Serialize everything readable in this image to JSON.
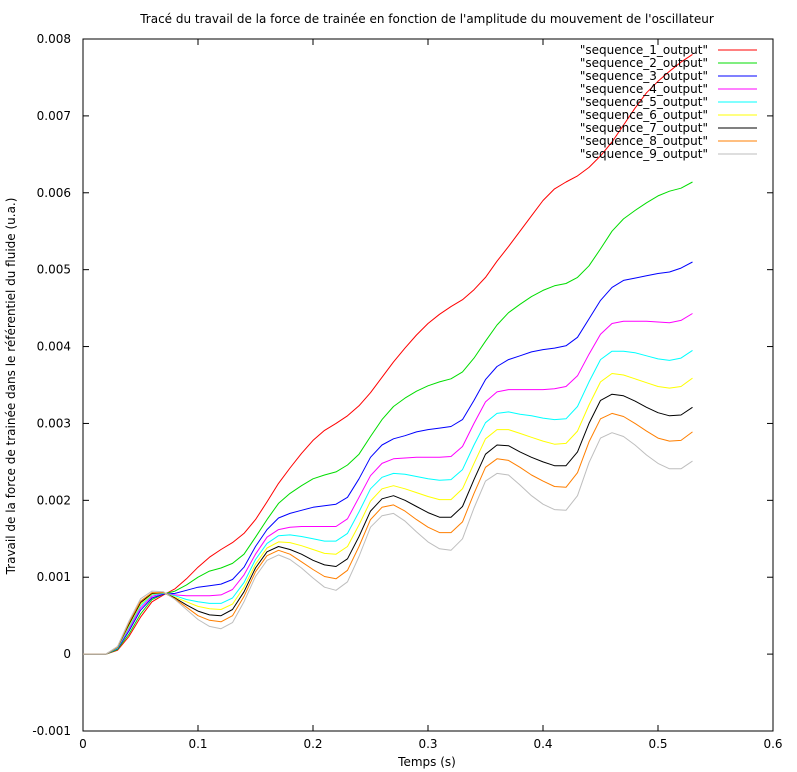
{
  "chart_data": {
    "type": "line",
    "title": "Tracé du travail de la force de trainée en fonction de l'amplitude du mouvement de l'oscillateur",
    "xlabel": "Temps (s)",
    "ylabel": "Travail de la force de trainée dans le référentiel du fluide (u.a.)",
    "xlim": [
      0,
      0.6
    ],
    "ylim": [
      -0.001,
      0.008
    ],
    "xticks": [
      0,
      0.1,
      0.2,
      0.3,
      0.4,
      0.5,
      0.6
    ],
    "xtick_labels": [
      "0",
      "0.1",
      "0.2",
      "0.3",
      "0.4",
      "0.5",
      "0.6"
    ],
    "yticks": [
      -0.001,
      0,
      0.001,
      0.002,
      0.003,
      0.004,
      0.005,
      0.006,
      0.007,
      0.008
    ],
    "ytick_labels": [
      "-0.001",
      "0",
      "0.001",
      "0.002",
      "0.003",
      "0.004",
      "0.005",
      "0.006",
      "0.007",
      "0.008"
    ],
    "legend_position": "top-right",
    "x": [
      0,
      0.01,
      0.02,
      0.03,
      0.04,
      0.05,
      0.06,
      0.07,
      0.08,
      0.09,
      0.1,
      0.11,
      0.12,
      0.13,
      0.14,
      0.15,
      0.16,
      0.17,
      0.18,
      0.19,
      0.2,
      0.21,
      0.22,
      0.23,
      0.24,
      0.25,
      0.26,
      0.27,
      0.28,
      0.29,
      0.3,
      0.31,
      0.32,
      0.33,
      0.34,
      0.35,
      0.36,
      0.37,
      0.38,
      0.39,
      0.4,
      0.41,
      0.42,
      0.43,
      0.44,
      0.45,
      0.46,
      0.47,
      0.48,
      0.49,
      0.5,
      0.51,
      0.52,
      0.53
    ],
    "series": [
      {
        "name": "\"sequence_1_output\"",
        "color": "#ff0000",
        "values": [
          0,
          0,
          0,
          5e-05,
          0.00023,
          0.00048,
          0.00068,
          0.00077,
          0.00085,
          0.00098,
          0.00113,
          0.00126,
          0.00136,
          0.00145,
          0.00157,
          0.00175,
          0.00198,
          0.00222,
          0.00242,
          0.00261,
          0.00278,
          0.00291,
          0.003,
          0.0031,
          0.00323,
          0.0034,
          0.0036,
          0.0038,
          0.00398,
          0.00415,
          0.0043,
          0.00442,
          0.00452,
          0.00461,
          0.00474,
          0.0049,
          0.00511,
          0.0053,
          0.0055,
          0.0057,
          0.0059,
          0.00605,
          0.00614,
          0.00622,
          0.00633,
          0.00648,
          0.00666,
          0.00688,
          0.0071,
          0.0073,
          0.00745,
          0.00758,
          0.0077,
          0.0078
        ]
      },
      {
        "name": "\"sequence_2_output\"",
        "color": "#00dd00",
        "values": [
          0,
          0,
          0,
          6e-05,
          0.00026,
          0.00052,
          0.00071,
          0.00078,
          0.00082,
          0.0009,
          0.001,
          0.00108,
          0.00112,
          0.00118,
          0.0013,
          0.00152,
          0.00175,
          0.00196,
          0.00209,
          0.00219,
          0.00228,
          0.00233,
          0.00237,
          0.00246,
          0.0026,
          0.00283,
          0.00305,
          0.00322,
          0.00333,
          0.00342,
          0.00349,
          0.00354,
          0.00358,
          0.00367,
          0.00385,
          0.00407,
          0.00428,
          0.00444,
          0.00455,
          0.00465,
          0.00473,
          0.00479,
          0.00482,
          0.0049,
          0.00505,
          0.00527,
          0.0055,
          0.00566,
          0.00577,
          0.00587,
          0.00596,
          0.00602,
          0.00606,
          0.00614
        ]
      },
      {
        "name": "\"sequence_3_output\"",
        "color": "#0000ff",
        "values": [
          0,
          0,
          0,
          7e-05,
          0.0003,
          0.00057,
          0.00073,
          0.00078,
          0.00079,
          0.00083,
          0.00087,
          0.00089,
          0.00091,
          0.00097,
          0.00113,
          0.0014,
          0.00162,
          0.00177,
          0.00183,
          0.00187,
          0.00191,
          0.00193,
          0.00195,
          0.00204,
          0.00228,
          0.00256,
          0.00272,
          0.0028,
          0.00284,
          0.00289,
          0.00292,
          0.00294,
          0.00296,
          0.00305,
          0.0033,
          0.00357,
          0.00374,
          0.00383,
          0.00388,
          0.00393,
          0.00396,
          0.00398,
          0.00401,
          0.00412,
          0.00436,
          0.0046,
          0.00477,
          0.00486,
          0.00489,
          0.00492,
          0.00495,
          0.00497,
          0.00502,
          0.0051
        ]
      },
      {
        "name": "\"sequence_4_output\"",
        "color": "#ff00ff",
        "values": [
          0,
          0,
          0,
          8e-05,
          0.00033,
          0.0006,
          0.00075,
          0.00079,
          0.00077,
          0.00076,
          0.00076,
          0.00076,
          0.00077,
          0.00084,
          0.00103,
          0.0013,
          0.00152,
          0.00162,
          0.00165,
          0.00166,
          0.00166,
          0.00166,
          0.00166,
          0.00176,
          0.00204,
          0.00232,
          0.00248,
          0.00254,
          0.00255,
          0.00256,
          0.00256,
          0.00256,
          0.00257,
          0.0027,
          0.003,
          0.00328,
          0.00341,
          0.00344,
          0.00344,
          0.00344,
          0.00344,
          0.00345,
          0.00348,
          0.00362,
          0.0039,
          0.00416,
          0.0043,
          0.00433,
          0.00433,
          0.00433,
          0.00432,
          0.00431,
          0.00434,
          0.00443
        ]
      },
      {
        "name": "\"sequence_5_output\"",
        "color": "#00ffff",
        "values": [
          0,
          0,
          0,
          8e-05,
          0.00035,
          0.00063,
          0.00077,
          0.00079,
          0.00076,
          0.00071,
          0.00068,
          0.00066,
          0.00066,
          0.00073,
          0.00093,
          0.00123,
          0.00144,
          0.00154,
          0.00155,
          0.00153,
          0.0015,
          0.00147,
          0.00147,
          0.00157,
          0.00185,
          0.00215,
          0.0023,
          0.00235,
          0.00234,
          0.00231,
          0.00228,
          0.00226,
          0.00227,
          0.0024,
          0.00272,
          0.00301,
          0.00313,
          0.00315,
          0.00312,
          0.0031,
          0.00307,
          0.00305,
          0.00306,
          0.00322,
          0.00354,
          0.00383,
          0.00394,
          0.00394,
          0.00392,
          0.00388,
          0.00384,
          0.00382,
          0.00385,
          0.00395
        ]
      },
      {
        "name": "\"sequence_6_output\"",
        "color": "#ffff00",
        "values": [
          0,
          0,
          0,
          9e-05,
          0.00037,
          0.00065,
          0.00078,
          0.0008,
          0.00074,
          0.00068,
          0.00062,
          0.00059,
          0.00058,
          0.00065,
          0.00087,
          0.00117,
          0.00138,
          0.00146,
          0.00145,
          0.00141,
          0.00136,
          0.00131,
          0.0013,
          0.0014,
          0.00168,
          0.00199,
          0.00215,
          0.00219,
          0.00215,
          0.0021,
          0.00205,
          0.00201,
          0.00201,
          0.00215,
          0.00248,
          0.0028,
          0.00292,
          0.00292,
          0.00287,
          0.00282,
          0.00277,
          0.00273,
          0.00274,
          0.0029,
          0.00324,
          0.00354,
          0.00365,
          0.00363,
          0.00358,
          0.00353,
          0.00348,
          0.00346,
          0.00348,
          0.00359
        ]
      },
      {
        "name": "\"sequence_7_output\"",
        "color": "#000000",
        "values": [
          0,
          0,
          0,
          9e-05,
          0.00039,
          0.00067,
          0.00079,
          0.0008,
          0.00073,
          0.00064,
          0.00056,
          0.00051,
          0.0005,
          0.00058,
          0.00081,
          0.00112,
          0.00133,
          0.0014,
          0.00136,
          0.0013,
          0.00122,
          0.00116,
          0.00114,
          0.00124,
          0.00153,
          0.00186,
          0.00202,
          0.00206,
          0.002,
          0.00192,
          0.00184,
          0.00178,
          0.00178,
          0.00192,
          0.00227,
          0.0026,
          0.00272,
          0.00271,
          0.00263,
          0.00256,
          0.0025,
          0.00245,
          0.00245,
          0.00263,
          0.003,
          0.0033,
          0.00338,
          0.00336,
          0.00329,
          0.00321,
          0.00314,
          0.0031,
          0.00311,
          0.00321
        ]
      },
      {
        "name": "\"sequence_8_output\"",
        "color": "#ff7f00",
        "values": [
          0,
          0,
          0,
          9e-05,
          0.00041,
          0.00069,
          0.0008,
          0.0008,
          0.00072,
          0.00061,
          0.0005,
          0.00044,
          0.00042,
          0.0005,
          0.00075,
          0.00107,
          0.00128,
          0.00135,
          0.0013,
          0.0012,
          0.0011,
          0.00101,
          0.00098,
          0.00109,
          0.0014,
          0.00175,
          0.00191,
          0.00194,
          0.00186,
          0.00175,
          0.00165,
          0.00158,
          0.00158,
          0.00172,
          0.00209,
          0.00243,
          0.00254,
          0.00252,
          0.00243,
          0.00233,
          0.00225,
          0.00218,
          0.00217,
          0.00236,
          0.00276,
          0.00306,
          0.00313,
          0.00309,
          0.003,
          0.0029,
          0.00281,
          0.00277,
          0.00278,
          0.00289
        ]
      },
      {
        "name": "\"sequence_9_output\"",
        "color": "#bebebe",
        "values": [
          0,
          0,
          0,
          0.0001,
          0.00043,
          0.00072,
          0.00082,
          0.00081,
          0.00071,
          0.00058,
          0.00045,
          0.00036,
          0.00033,
          0.00041,
          0.00068,
          0.00101,
          0.00122,
          0.00129,
          0.00123,
          0.00112,
          0.00099,
          0.00087,
          0.00083,
          0.00094,
          0.00127,
          0.00165,
          0.0018,
          0.00183,
          0.00173,
          0.00159,
          0.00146,
          0.00137,
          0.00135,
          0.0015,
          0.0019,
          0.00225,
          0.00235,
          0.00233,
          0.0022,
          0.00206,
          0.00195,
          0.00188,
          0.00187,
          0.00206,
          0.00249,
          0.00281,
          0.00288,
          0.00283,
          0.00272,
          0.00259,
          0.00248,
          0.00241,
          0.00241,
          0.00251
        ]
      }
    ]
  }
}
